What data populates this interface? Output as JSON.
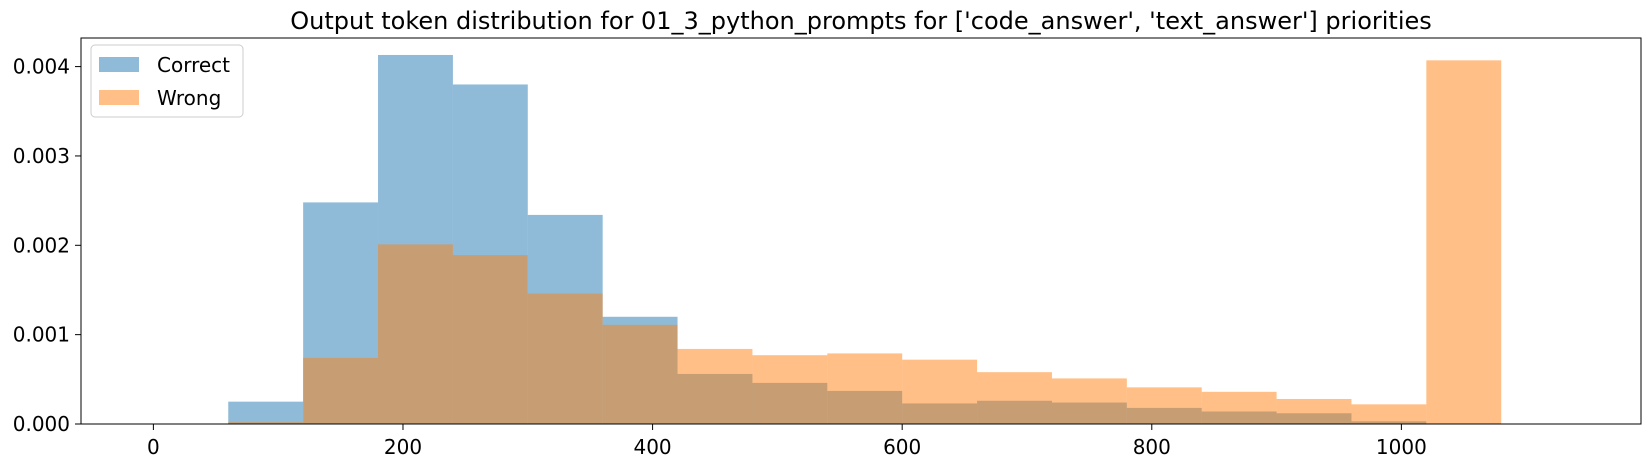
{
  "chart_data": {
    "type": "bar",
    "title": "Output token distribution for 01_3_python_prompts for ['code_answer', 'text_answer'] priorities",
    "xlabel": "",
    "ylabel": "",
    "xlim": [
      -58,
      1192
    ],
    "ylim": [
      0,
      0.00432
    ],
    "x_ticks": [
      0,
      200,
      400,
      600,
      800,
      1000
    ],
    "x_tick_labels": [
      "0",
      "200",
      "400",
      "600",
      "800",
      "1000"
    ],
    "y_ticks": [
      0,
      0.001,
      0.002,
      0.003,
      0.004
    ],
    "y_tick_labels": [
      "0.000",
      "0.001",
      "0.002",
      "0.003",
      "0.004"
    ],
    "grid": false,
    "legend_position": "top-left",
    "series": [
      {
        "name": "Correct",
        "color": "#1f77b4",
        "opacity": 0.5,
        "bin_edges": [
          60,
          120,
          180,
          240,
          300,
          360,
          420,
          480,
          540,
          600,
          660,
          720,
          780,
          840,
          900,
          960,
          1020
        ],
        "values": [
          0.00025,
          0.00248,
          0.00413,
          0.0038,
          0.00234,
          0.0012,
          0.00056,
          0.00046,
          0.00037,
          0.00023,
          0.00026,
          0.00024,
          0.00018,
          0.00014,
          0.00012,
          3e-05
        ]
      },
      {
        "name": "Wrong",
        "color": "#ff7f0e",
        "opacity": 0.5,
        "bin_edges": [
          60,
          120,
          180,
          240,
          300,
          360,
          420,
          480,
          540,
          600,
          660,
          720,
          780,
          840,
          900,
          960,
          1020,
          1080
        ],
        "values": [
          2e-05,
          0.00074,
          0.00201,
          0.00189,
          0.00146,
          0.00111,
          0.00084,
          0.00077,
          0.00079,
          0.00072,
          0.00058,
          0.00051,
          0.00041,
          0.00036,
          0.00028,
          0.00022,
          0.00407
        ]
      }
    ]
  }
}
